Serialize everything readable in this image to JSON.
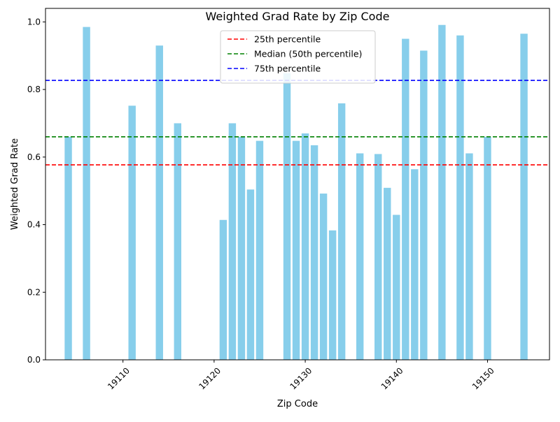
{
  "chart_data": {
    "type": "bar",
    "title": "Weighted Grad Rate by Zip Code",
    "xlabel": "Zip Code",
    "ylabel": "Weighted Grad Rate",
    "xlim": [
      19101.5,
      19156.8
    ],
    "ylim": [
      0,
      1.04
    ],
    "x_ticks": [
      19110,
      19120,
      19130,
      19140,
      19150
    ],
    "y_ticks": [
      0.0,
      0.2,
      0.4,
      0.6,
      0.8,
      1.0
    ],
    "y_tick_labels": [
      "0.0",
      "0.2",
      "0.4",
      "0.6",
      "0.8",
      "1.0"
    ],
    "bar_color": "#87ceeb",
    "points": [
      {
        "x": 19104,
        "y": 0.66
      },
      {
        "x": 19106,
        "y": 0.985
      },
      {
        "x": 19111,
        "y": 0.752
      },
      {
        "x": 19114,
        "y": 0.93
      },
      {
        "x": 19116,
        "y": 0.7
      },
      {
        "x": 19121,
        "y": 0.414
      },
      {
        "x": 19122,
        "y": 0.7
      },
      {
        "x": 19123,
        "y": 0.66
      },
      {
        "x": 19124,
        "y": 0.504
      },
      {
        "x": 19125,
        "y": 0.648
      },
      {
        "x": 19128,
        "y": 0.848
      },
      {
        "x": 19129,
        "y": 0.648
      },
      {
        "x": 19130,
        "y": 0.67
      },
      {
        "x": 19131,
        "y": 0.635
      },
      {
        "x": 19132,
        "y": 0.492
      },
      {
        "x": 19133,
        "y": 0.383
      },
      {
        "x": 19134,
        "y": 0.759
      },
      {
        "x": 19136,
        "y": 0.611
      },
      {
        "x": 19138,
        "y": 0.609
      },
      {
        "x": 19139,
        "y": 0.509
      },
      {
        "x": 19140,
        "y": 0.429
      },
      {
        "x": 19141,
        "y": 0.95
      },
      {
        "x": 19142,
        "y": 0.564
      },
      {
        "x": 19143,
        "y": 0.915
      },
      {
        "x": 19145,
        "y": 0.991
      },
      {
        "x": 19147,
        "y": 0.96
      },
      {
        "x": 19148,
        "y": 0.611
      },
      {
        "x": 19150,
        "y": 0.66
      },
      {
        "x": 19154,
        "y": 0.965
      }
    ],
    "reference_lines": [
      {
        "name": "25th percentile",
        "value": 0.577,
        "color": "#ff0000",
        "style": "dashed"
      },
      {
        "name": "Median (50th percentile)",
        "value": 0.66,
        "color": "#008000",
        "style": "dashed"
      },
      {
        "name": "75th percentile",
        "value": 0.827,
        "color": "#0000ff",
        "style": "dashed"
      }
    ],
    "legend_position": "upper center",
    "grid": false
  }
}
